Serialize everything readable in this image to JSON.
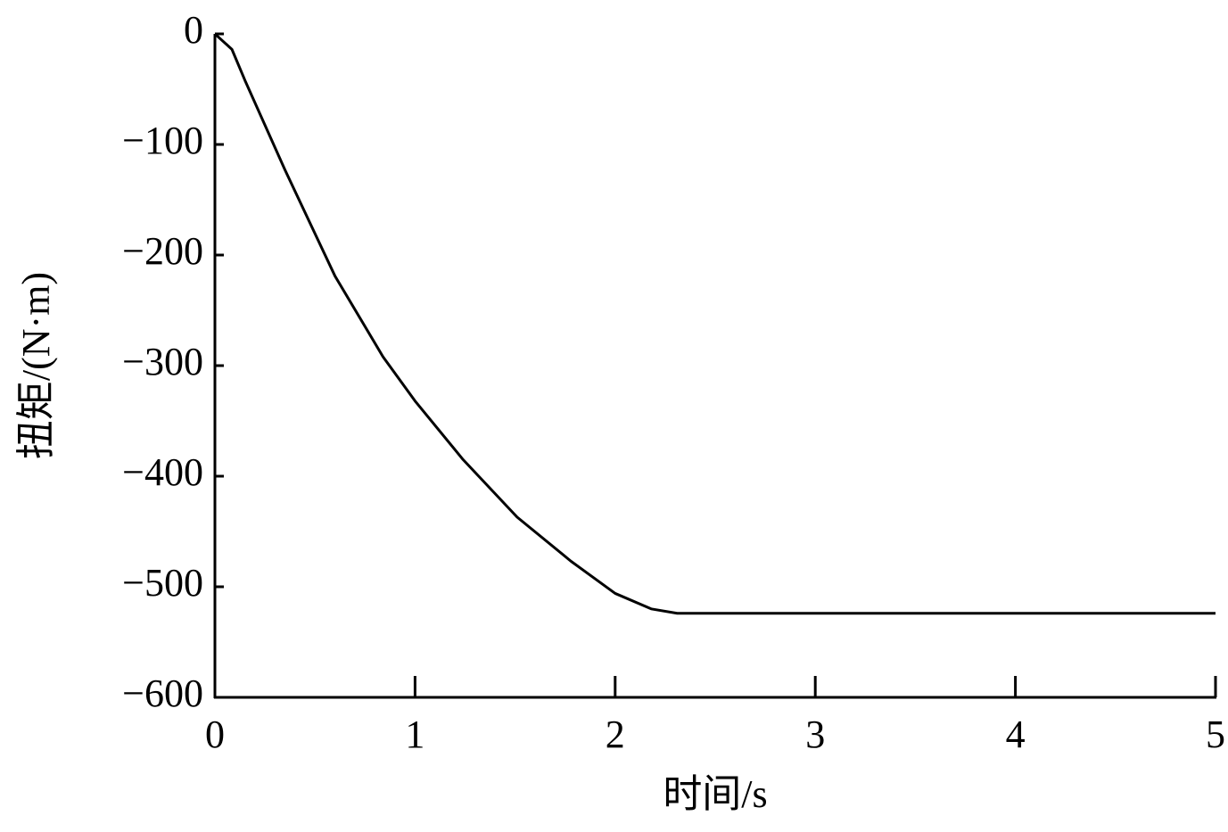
{
  "chart_data": {
    "type": "line",
    "x_label": "时间/s",
    "y_label": "扭矩/(N·m)",
    "x": [
      0,
      0.085,
      0.15,
      0.35,
      0.6,
      0.84,
      1.0,
      1.24,
      1.51,
      1.78,
      2.0,
      2.18,
      2.31,
      3.0,
      4.0,
      5.0
    ],
    "series": [
      {
        "color": "#000000",
        "values": [
          0,
          -14,
          -42,
          -123,
          -219,
          -292,
          -332,
          -385,
          -437,
          -477,
          -506,
          -520,
          -524,
          -524,
          -524,
          -524
        ]
      }
    ],
    "xlim": [
      0,
      5
    ],
    "xticks": [
      0,
      1,
      2,
      3,
      4,
      5
    ],
    "ylim": [
      -600,
      0
    ],
    "yticks": [
      {
        "value": -600,
        "label": "−600"
      },
      {
        "value": -500,
        "label": "−500"
      },
      {
        "value": -400,
        "label": "−400"
      },
      {
        "value": -300,
        "label": "−300"
      },
      {
        "value": -200,
        "label": "−200"
      },
      {
        "value": -100,
        "label": "−100"
      },
      0
    ],
    "grid": false
  }
}
